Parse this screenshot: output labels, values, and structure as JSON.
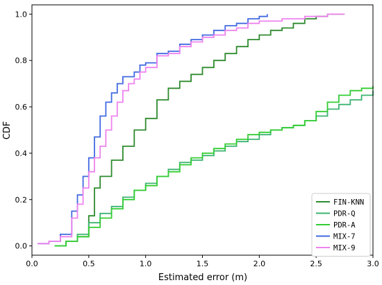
{
  "chart_data": {
    "type": "line",
    "title": "",
    "xlabel": "Estimated error (m)",
    "ylabel": "CDF",
    "xlim": [
      0.0,
      3.0
    ],
    "ylim": [
      -0.04,
      1.04
    ],
    "xticks": [
      "0.0",
      "0.5",
      "1.0",
      "1.5",
      "2.0",
      "2.5",
      "3.0"
    ],
    "yticks": [
      "0.0",
      "0.2",
      "0.4",
      "0.6",
      "0.8",
      "1.0"
    ],
    "grid": false,
    "legend_position": "lower-right",
    "series": [
      {
        "name": "FIN-KNN",
        "color": "#2e8b2e",
        "x": [
          0.2,
          0.3,
          0.4,
          0.5,
          0.55,
          0.6,
          0.7,
          0.8,
          0.9,
          1.0,
          1.1,
          1.2,
          1.3,
          1.4,
          1.5,
          1.6,
          1.7,
          1.8,
          1.9,
          2.0,
          2.1,
          2.2,
          2.3,
          2.4,
          2.5,
          2.6,
          2.7,
          2.75
        ],
        "y": [
          0.0,
          0.02,
          0.04,
          0.13,
          0.25,
          0.3,
          0.37,
          0.43,
          0.5,
          0.55,
          0.63,
          0.68,
          0.71,
          0.74,
          0.77,
          0.8,
          0.83,
          0.86,
          0.89,
          0.91,
          0.93,
          0.94,
          0.96,
          0.98,
          0.99,
          1.0,
          1.0,
          1.0
        ]
      },
      {
        "name": "PDR-Q",
        "color": "#3cb371",
        "x": [
          0.2,
          0.3,
          0.4,
          0.5,
          0.6,
          0.7,
          0.8,
          0.9,
          1.0,
          1.1,
          1.2,
          1.3,
          1.4,
          1.5,
          1.6,
          1.7,
          1.8,
          1.9,
          2.0,
          2.1,
          2.2,
          2.3,
          2.4,
          2.5,
          2.6,
          2.7,
          2.8,
          2.9,
          3.0
        ],
        "y": [
          0.0,
          0.02,
          0.05,
          0.1,
          0.14,
          0.17,
          0.21,
          0.24,
          0.27,
          0.3,
          0.33,
          0.36,
          0.37,
          0.39,
          0.41,
          0.43,
          0.45,
          0.46,
          0.48,
          0.5,
          0.51,
          0.52,
          0.54,
          0.56,
          0.59,
          0.61,
          0.63,
          0.65,
          0.67
        ]
      },
      {
        "name": "PDR-A",
        "color": "#32cd32",
        "x": [
          0.2,
          0.3,
          0.4,
          0.5,
          0.6,
          0.7,
          0.8,
          0.9,
          1.0,
          1.1,
          1.2,
          1.3,
          1.4,
          1.5,
          1.6,
          1.7,
          1.8,
          1.9,
          2.0,
          2.1,
          2.2,
          2.3,
          2.4,
          2.5,
          2.6,
          2.7,
          2.8,
          2.9,
          3.0
        ],
        "y": [
          0.0,
          0.02,
          0.04,
          0.08,
          0.12,
          0.16,
          0.2,
          0.24,
          0.26,
          0.3,
          0.32,
          0.35,
          0.38,
          0.4,
          0.42,
          0.44,
          0.46,
          0.48,
          0.49,
          0.5,
          0.51,
          0.52,
          0.54,
          0.58,
          0.62,
          0.65,
          0.67,
          0.68,
          0.69
        ]
      },
      {
        "name": "MIX-7",
        "color": "#4169e1",
        "x": [
          0.05,
          0.15,
          0.25,
          0.35,
          0.4,
          0.45,
          0.5,
          0.55,
          0.6,
          0.65,
          0.7,
          0.75,
          0.8,
          0.85,
          0.9,
          0.95,
          1.0,
          1.1,
          1.2,
          1.3,
          1.4,
          1.5,
          1.6,
          1.7,
          1.8,
          1.9,
          2.0,
          2.07
        ],
        "y": [
          0.01,
          0.02,
          0.05,
          0.15,
          0.22,
          0.3,
          0.38,
          0.47,
          0.56,
          0.62,
          0.66,
          0.7,
          0.73,
          0.73,
          0.75,
          0.78,
          0.79,
          0.83,
          0.84,
          0.87,
          0.89,
          0.91,
          0.93,
          0.95,
          0.96,
          0.98,
          0.99,
          1.0
        ]
      },
      {
        "name": "MIX-9",
        "color": "#ee82ee",
        "x": [
          0.05,
          0.15,
          0.25,
          0.35,
          0.4,
          0.45,
          0.5,
          0.55,
          0.6,
          0.65,
          0.7,
          0.75,
          0.8,
          0.85,
          0.9,
          0.95,
          1.0,
          1.1,
          1.2,
          1.3,
          1.4,
          1.5,
          1.6,
          1.7,
          1.8,
          1.9,
          2.0,
          2.2,
          2.4,
          2.6,
          2.75
        ],
        "y": [
          0.01,
          0.02,
          0.04,
          0.12,
          0.18,
          0.25,
          0.32,
          0.38,
          0.43,
          0.5,
          0.56,
          0.62,
          0.67,
          0.7,
          0.72,
          0.75,
          0.77,
          0.82,
          0.83,
          0.86,
          0.88,
          0.9,
          0.91,
          0.93,
          0.94,
          0.96,
          0.97,
          0.98,
          0.99,
          1.0,
          1.0
        ]
      }
    ]
  }
}
